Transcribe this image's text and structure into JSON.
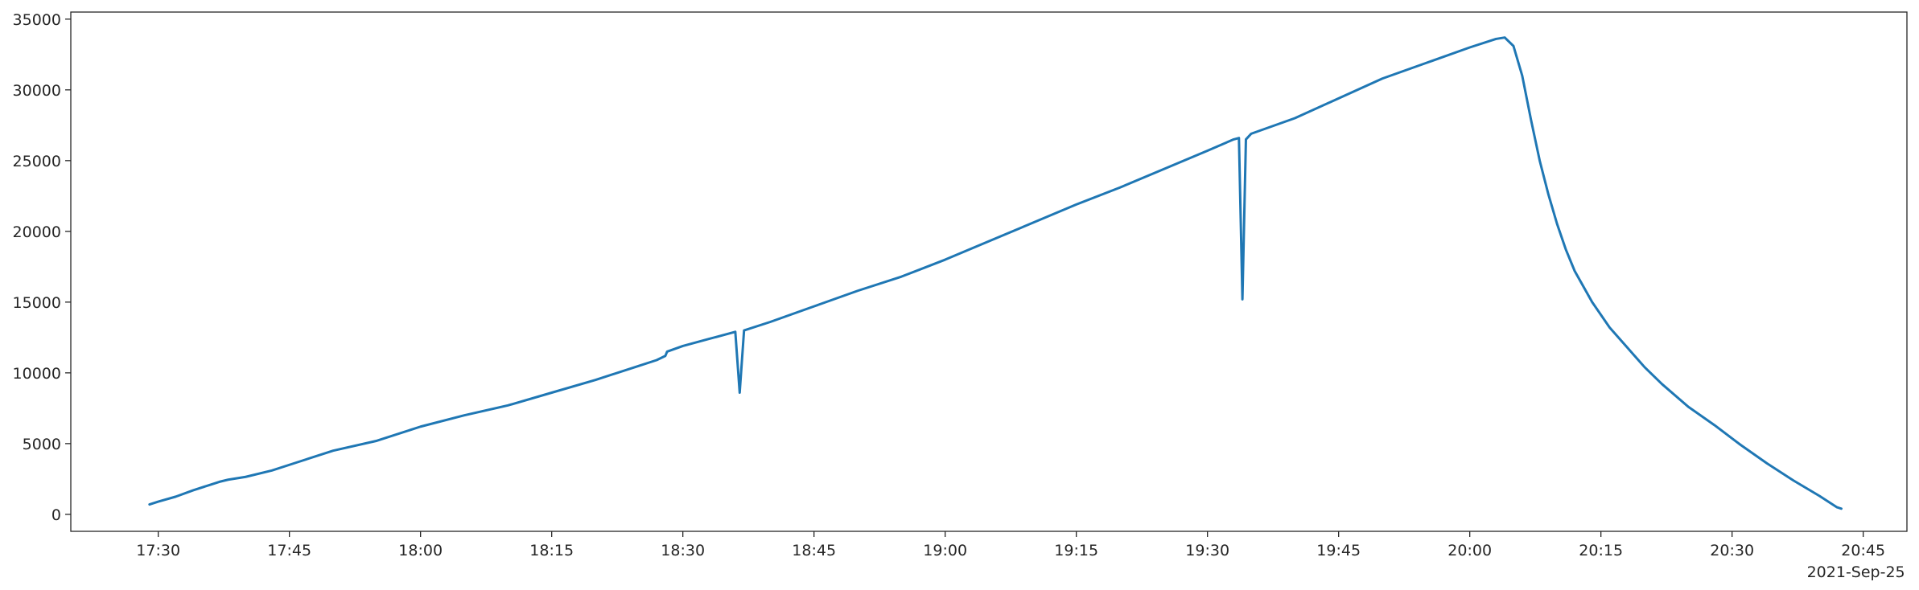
{
  "chart_data": {
    "type": "line",
    "title": "",
    "xlabel": "",
    "ylabel": "",
    "x_axis": {
      "kind": "time",
      "date_label": "2021-Sep-25",
      "range": [
        "17:20",
        "20:50"
      ],
      "ticks": [
        "17:30",
        "17:45",
        "18:00",
        "18:15",
        "18:30",
        "18:45",
        "19:00",
        "19:15",
        "19:30",
        "19:45",
        "20:00",
        "20:15",
        "20:30",
        "20:45"
      ]
    },
    "y_axis": {
      "range": [
        -1200,
        35500
      ],
      "ticks": [
        0,
        5000,
        10000,
        15000,
        20000,
        25000,
        30000,
        35000
      ]
    },
    "grid": false,
    "legend": "none",
    "series": [
      {
        "color": "#1f77b4",
        "points": [
          [
            "17:29",
            700
          ],
          [
            "17:30",
            900
          ],
          [
            "17:32",
            1250
          ],
          [
            "17:34",
            1700
          ],
          [
            "17:36",
            2100
          ],
          [
            "17:37",
            2300
          ],
          [
            "17:38",
            2450
          ],
          [
            "17:40",
            2650
          ],
          [
            "17:43",
            3100
          ],
          [
            "17:46",
            3700
          ],
          [
            "17:50",
            4500
          ],
          [
            "17:55",
            5200
          ],
          [
            "18:00",
            6200
          ],
          [
            "18:05",
            7000
          ],
          [
            "18:10",
            7700
          ],
          [
            "18:15",
            8600
          ],
          [
            "18:20",
            9500
          ],
          [
            "18:25",
            10500
          ],
          [
            "18:27",
            10900
          ],
          [
            "18:28",
            11200
          ],
          [
            "18:28.2",
            11500
          ],
          [
            "18:30",
            11900
          ],
          [
            "18:33",
            12400
          ],
          [
            "18:36",
            12900
          ],
          [
            "18:36.5",
            8600
          ],
          [
            "18:37",
            13000
          ],
          [
            "18:40",
            13600
          ],
          [
            "18:45",
            14700
          ],
          [
            "18:50",
            15800
          ],
          [
            "18:55",
            16800
          ],
          [
            "19:00",
            18000
          ],
          [
            "19:05",
            19300
          ],
          [
            "19:10",
            20600
          ],
          [
            "19:15",
            21900
          ],
          [
            "19:20",
            23100
          ],
          [
            "19:25",
            24400
          ],
          [
            "19:30",
            25700
          ],
          [
            "19:33",
            26500
          ],
          [
            "19:33.6",
            26600
          ],
          [
            "19:34",
            15200
          ],
          [
            "19:34.4",
            26500
          ],
          [
            "19:35",
            26900
          ],
          [
            "19:40",
            28000
          ],
          [
            "19:45",
            29400
          ],
          [
            "19:50",
            30800
          ],
          [
            "19:55",
            31900
          ],
          [
            "20:00",
            33000
          ],
          [
            "20:03",
            33600
          ],
          [
            "20:04",
            33700
          ],
          [
            "20:05",
            33100
          ],
          [
            "20:06",
            31000
          ],
          [
            "20:07",
            27900
          ],
          [
            "20:08",
            25000
          ],
          [
            "20:09",
            22600
          ],
          [
            "20:10",
            20500
          ],
          [
            "20:11",
            18700
          ],
          [
            "20:12",
            17200
          ],
          [
            "20:14",
            15000
          ],
          [
            "20:16",
            13200
          ],
          [
            "20:18",
            11800
          ],
          [
            "20:20",
            10400
          ],
          [
            "20:22",
            9200
          ],
          [
            "20:25",
            7600
          ],
          [
            "20:28",
            6300
          ],
          [
            "20:31",
            4900
          ],
          [
            "20:34",
            3600
          ],
          [
            "20:37",
            2400
          ],
          [
            "20:40",
            1300
          ],
          [
            "20:42",
            500
          ],
          [
            "20:42.5",
            400
          ]
        ]
      }
    ]
  }
}
